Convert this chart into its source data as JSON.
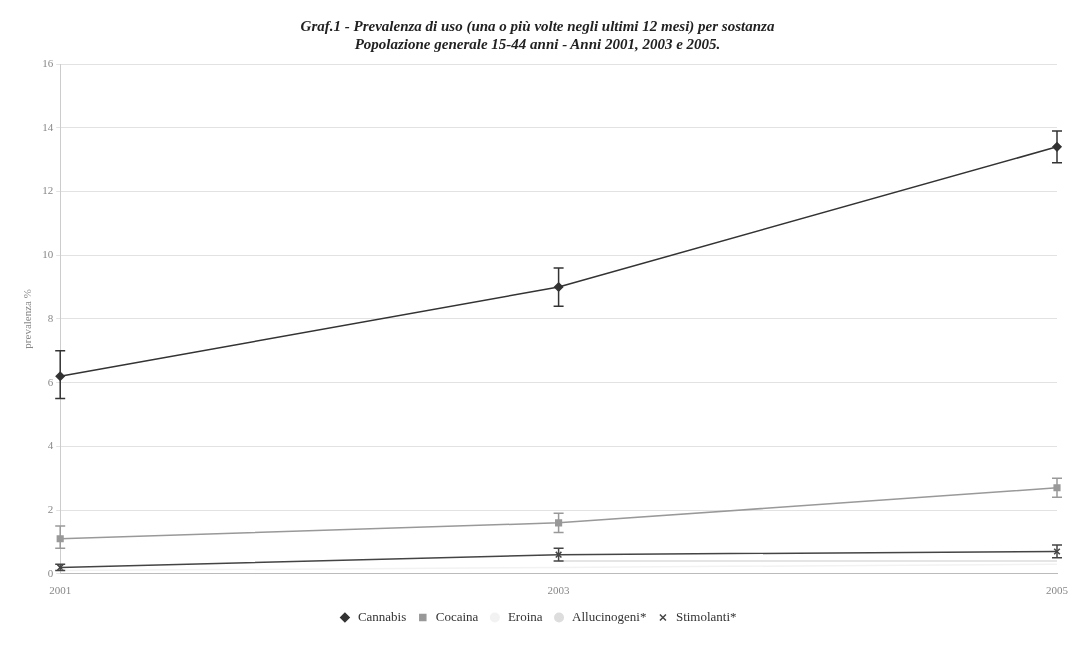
{
  "chart_data": {
    "type": "line",
    "title": "Graf.1 - Prevalenza di uso (una o più volte negli ultimi 12 mesi) per sostanza",
    "subtitle": "Popolazione generale 15-44 anni - Anni 2001, 2003 e 2005.",
    "ylabel": "prevalenza %",
    "categories": [
      "2001",
      "2003",
      "2005"
    ],
    "ylim": [
      0,
      16
    ],
    "yticks": [
      0,
      2,
      4,
      6,
      8,
      10,
      12,
      14,
      16
    ],
    "grid": "y",
    "legend": "bottom",
    "series": [
      {
        "name": "Cannabis",
        "color": "#333333",
        "marker": "diamond",
        "values": [
          6.2,
          9.0,
          13.4
        ],
        "errors": [
          [
            5.5,
            7.0
          ],
          [
            8.4,
            9.6
          ],
          [
            12.9,
            13.9
          ]
        ]
      },
      {
        "name": "Cocaina",
        "color": "#999999",
        "marker": "square",
        "values": [
          1.1,
          1.6,
          2.7
        ],
        "errors": [
          [
            0.8,
            1.5
          ],
          [
            1.3,
            1.9
          ],
          [
            2.4,
            3.0
          ]
        ]
      },
      {
        "name": "Eroina",
        "color": "#f2f2f2",
        "marker": "none",
        "values": [
          0.1,
          0.2,
          0.3
        ]
      },
      {
        "name": "Allucinogeni*",
        "color": "#dddddd",
        "marker": "none",
        "values": [
          null,
          0.4,
          0.4
        ]
      },
      {
        "name": "Stimolanti*",
        "color": "#444444",
        "marker": "cross",
        "values": [
          0.2,
          0.6,
          0.7
        ],
        "errors": [
          [
            0.1,
            0.3
          ],
          [
            0.4,
            0.8
          ],
          [
            0.5,
            0.9
          ]
        ]
      }
    ]
  }
}
